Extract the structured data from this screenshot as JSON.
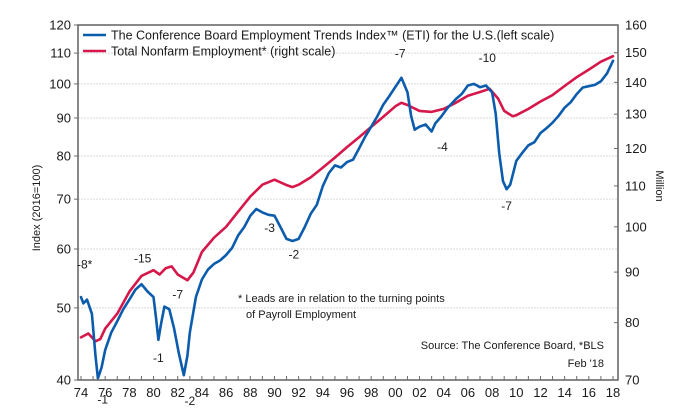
{
  "chart_data": {
    "type": "line",
    "title": "",
    "xlabel": "",
    "ylabel_left": "Index (2016=100)",
    "ylabel_right": "Million",
    "x_tick_labels": [
      "74",
      "76",
      "78",
      "80",
      "82",
      "84",
      "86",
      "88",
      "90",
      "92",
      "94",
      "96",
      "98",
      "00",
      "02",
      "04",
      "06",
      "08",
      "10",
      "12",
      "14",
      "16",
      "18"
    ],
    "x_range": [
      1974,
      2018
    ],
    "y_left_ticks": [
      40,
      50,
      60,
      70,
      80,
      90,
      100,
      110,
      120
    ],
    "y_left_range": [
      40,
      120
    ],
    "y_left_scale": "log",
    "y_right_ticks": [
      70,
      80,
      90,
      100,
      110,
      120,
      130,
      140,
      150,
      160
    ],
    "y_right_range": [
      70,
      160
    ],
    "y_right_scale": "log",
    "grid": true,
    "legend_position": "top-left",
    "series": [
      {
        "name": "The Conference Board Employment Trends Index™ (ETI) for the U.S.(left scale)",
        "axis": "left",
        "color": "#0b5cad",
        "x": [
          1974.0,
          1974.2,
          1974.5,
          1974.9,
          1975.2,
          1975.4,
          1975.7,
          1976.0,
          1976.5,
          1977.0,
          1977.5,
          1978.0,
          1978.5,
          1979.0,
          1979.5,
          1980.0,
          1980.2,
          1980.4,
          1980.6,
          1980.9,
          1981.3,
          1981.7,
          1982.1,
          1982.5,
          1982.8,
          1983.0,
          1983.5,
          1984.0,
          1984.5,
          1985.0,
          1985.5,
          1986.0,
          1986.5,
          1987.0,
          1987.5,
          1988.0,
          1988.5,
          1989.0,
          1989.5,
          1990.0,
          1990.5,
          1991.0,
          1991.5,
          1992.0,
          1992.5,
          1993.0,
          1993.5,
          1994.0,
          1994.5,
          1995.0,
          1995.5,
          1996.0,
          1996.5,
          1997.0,
          1997.5,
          1998.0,
          1998.5,
          1999.0,
          1999.5,
          2000.5,
          2001.0,
          2001.3,
          2001.6,
          2002.0,
          2002.5,
          2003.0,
          2003.3,
          2003.8,
          2004.3,
          2005.0,
          2005.5,
          2006.0,
          2006.5,
          2007.0,
          2007.5,
          2008.0,
          2008.3,
          2008.6,
          2008.9,
          2009.2,
          2009.5,
          2010.0,
          2010.5,
          2011.0,
          2011.5,
          2012.0,
          2012.5,
          2013.0,
          2013.5,
          2014.0,
          2014.5,
          2015.0,
          2015.5,
          2016.0,
          2016.5,
          2017.0,
          2017.5,
          2018.0
        ],
        "values": [
          51.7,
          50.7,
          51.3,
          49.1,
          43.1,
          40.2,
          41.6,
          43.9,
          46.3,
          48.0,
          49.8,
          51.3,
          52.9,
          53.8,
          52.6,
          51.7,
          48.5,
          45.3,
          47.4,
          50.2,
          49.8,
          46.9,
          43.4,
          40.6,
          43.1,
          46.3,
          51.7,
          54.6,
          56.3,
          57.3,
          57.9,
          58.9,
          60.2,
          62.6,
          64.2,
          66.5,
          67.9,
          67.2,
          66.7,
          66.5,
          64.2,
          61.9,
          61.5,
          61.9,
          64.2,
          66.9,
          68.8,
          72.9,
          75.9,
          77.7,
          77.2,
          78.5,
          79.1,
          81.9,
          84.9,
          87.6,
          90.4,
          93.8,
          96.3,
          101.9,
          97.4,
          90.6,
          86.8,
          87.6,
          88.2,
          86.3,
          88.5,
          90.4,
          92.8,
          95.4,
          97.0,
          99.5,
          100.0,
          99.0,
          99.5,
          97.4,
          91.2,
          80.5,
          74.0,
          72.2,
          73.2,
          78.8,
          80.8,
          82.7,
          83.5,
          85.9,
          87.2,
          88.7,
          90.6,
          92.9,
          94.5,
          96.9,
          98.9,
          99.3,
          99.7,
          100.8,
          103.3,
          107.4
        ]
      },
      {
        "name": "Total Nonfarm Employment* (right scale)",
        "axis": "right",
        "color": "#d6174a",
        "x": [
          1974.0,
          1974.6,
          1975.2,
          1975.6,
          1976.0,
          1977.0,
          1978.0,
          1979.0,
          1980.0,
          1980.5,
          1981.0,
          1981.5,
          1982.0,
          1982.8,
          1983.3,
          1984.0,
          1985.0,
          1986.0,
          1987.0,
          1988.0,
          1989.0,
          1990.0,
          1991.0,
          1991.5,
          1992.0,
          1993.0,
          1994.0,
          1995.0,
          1996.0,
          1997.0,
          1998.0,
          1999.0,
          2000.0,
          2000.5,
          2001.0,
          2002.0,
          2003.0,
          2004.0,
          2005.0,
          2006.0,
          2007.0,
          2007.8,
          2008.5,
          2009.0,
          2009.7,
          2010.0,
          2011.0,
          2012.0,
          2013.0,
          2014.0,
          2015.0,
          2016.0,
          2017.0,
          2018.0
        ],
        "values": [
          77.3,
          78.0,
          76.6,
          77.0,
          78.9,
          81.7,
          86.0,
          89.2,
          90.4,
          89.5,
          90.8,
          91.2,
          89.5,
          88.3,
          89.9,
          94.3,
          97.5,
          100.0,
          103.6,
          107.3,
          110.3,
          111.6,
          110.2,
          109.7,
          110.3,
          112.2,
          114.8,
          117.5,
          120.4,
          123.2,
          126.2,
          129.2,
          132.4,
          133.5,
          132.8,
          131.0,
          130.7,
          131.6,
          133.5,
          135.7,
          136.9,
          137.9,
          134.8,
          131.0,
          129.4,
          129.7,
          131.6,
          133.9,
          135.9,
          138.8,
          141.7,
          144.2,
          146.9,
          148.8
        ]
      }
    ],
    "annotations": [
      {
        "text": "-8*",
        "x": 1974.3,
        "y": 56.5,
        "axis": "left"
      },
      {
        "text": "-1",
        "x": 1975.8,
        "y": 37.2,
        "axis": "left"
      },
      {
        "text": "-15",
        "x": 1979.1,
        "y": 57.5,
        "axis": "left"
      },
      {
        "text": "-1",
        "x": 1980.4,
        "y": 42.3,
        "axis": "left"
      },
      {
        "text": "-7",
        "x": 1982.0,
        "y": 51.5,
        "axis": "left"
      },
      {
        "text": "-2",
        "x": 1983.0,
        "y": 37.0,
        "axis": "left"
      },
      {
        "text": "-3",
        "x": 1989.6,
        "y": 63.2,
        "axis": "left"
      },
      {
        "text": "-2",
        "x": 1991.6,
        "y": 58.3,
        "axis": "left"
      },
      {
        "text": "-7",
        "x": 2000.4,
        "y": 108.5,
        "axis": "left"
      },
      {
        "text": "-4",
        "x": 2003.9,
        "y": 81.3,
        "axis": "left"
      },
      {
        "text": "-10",
        "x": 2007.6,
        "y": 107.0,
        "axis": "left"
      },
      {
        "text": "-7",
        "x": 2009.2,
        "y": 67.7,
        "axis": "left"
      }
    ],
    "footnote_lines": [
      "* Leads are in relation to the turning points",
      "of Payroll Employment"
    ],
    "source": "Source: The Conference Board, *BLS",
    "date_label": "Feb '18"
  }
}
